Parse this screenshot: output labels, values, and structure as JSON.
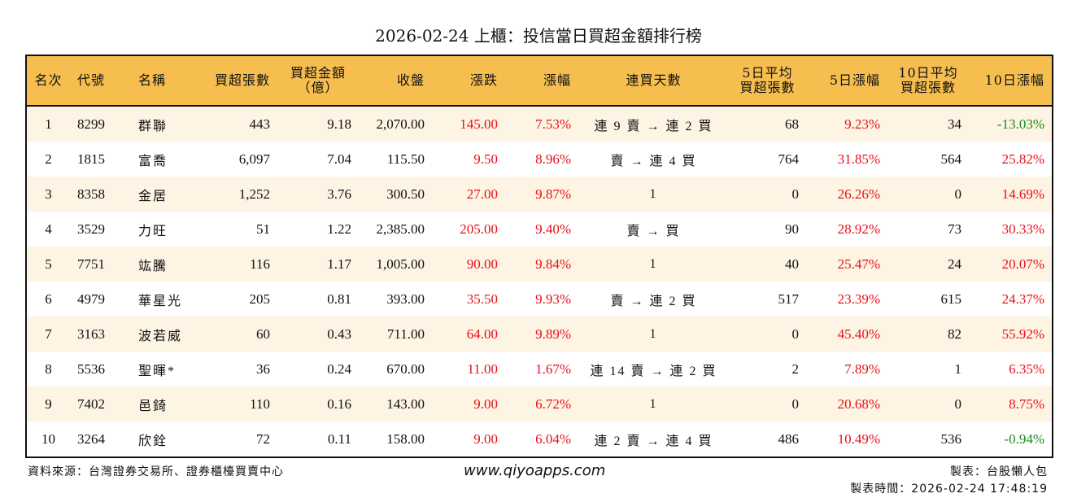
{
  "title": "2026-02-24 上櫃：投信當日買超金額排行榜",
  "colors": {
    "header": "#F6BE4F",
    "row_alt": "#FDF4E3",
    "up": "#E8101A",
    "down": "#1A8A1A"
  },
  "headers": [
    "名次",
    "代號",
    "名稱",
    "買超張數",
    "買超金額\n（億）",
    "收盤",
    "漲跌",
    "漲幅",
    "連買天數",
    "5日平均\n買超張數",
    "5日漲幅",
    "10日平均\n買超張數",
    "10日漲幅"
  ],
  "rows": [
    [
      "1",
      "8299",
      "群聯",
      "443",
      "9.18",
      "2,070.00",
      "145.00",
      "7.53%",
      "連 9 賣 → 連 2 買",
      "68",
      "9.23%",
      "34",
      "-13.03%"
    ],
    [
      "2",
      "1815",
      "富喬",
      "6,097",
      "7.04",
      "115.50",
      "9.50",
      "8.96%",
      "賣 → 連 4 買",
      "764",
      "31.85%",
      "564",
      "25.82%"
    ],
    [
      "3",
      "8358",
      "金居",
      "1,252",
      "3.76",
      "300.50",
      "27.00",
      "9.87%",
      "1",
      "0",
      "26.26%",
      "0",
      "14.69%"
    ],
    [
      "4",
      "3529",
      "力旺",
      "51",
      "1.22",
      "2,385.00",
      "205.00",
      "9.40%",
      "賣 → 買",
      "90",
      "28.92%",
      "73",
      "30.33%"
    ],
    [
      "5",
      "7751",
      "竑騰",
      "116",
      "1.17",
      "1,005.00",
      "90.00",
      "9.84%",
      "1",
      "40",
      "25.47%",
      "24",
      "20.07%"
    ],
    [
      "6",
      "4979",
      "華星光",
      "205",
      "0.81",
      "393.00",
      "35.50",
      "9.93%",
      "賣 → 連 2 買",
      "517",
      "23.39%",
      "615",
      "24.37%"
    ],
    [
      "7",
      "3163",
      "波若威",
      "60",
      "0.43",
      "711.00",
      "64.00",
      "9.89%",
      "1",
      "0",
      "45.40%",
      "82",
      "55.92%"
    ],
    [
      "8",
      "5536",
      "聖暉*",
      "36",
      "0.24",
      "670.00",
      "11.00",
      "1.67%",
      "連 14 賣 → 連 2 買",
      "2",
      "7.89%",
      "1",
      "6.35%"
    ],
    [
      "9",
      "7402",
      "邑錡",
      "110",
      "0.16",
      "143.00",
      "9.00",
      "6.72%",
      "1",
      "0",
      "20.68%",
      "0",
      "8.75%"
    ],
    [
      "10",
      "3264",
      "欣銓",
      "72",
      "0.11",
      "158.00",
      "9.00",
      "6.04%",
      "連 2 賣 → 連 4 買",
      "486",
      "10.49%",
      "536",
      "-0.94%"
    ]
  ],
  "footer": {
    "source": "資料來源：台灣證券交易所、證券櫃檯買賣中心",
    "url": "www.qiyoapps.com",
    "maker": "製表：台股懶人包",
    "time": "製表時間：2026-02-24 17:48:19"
  }
}
